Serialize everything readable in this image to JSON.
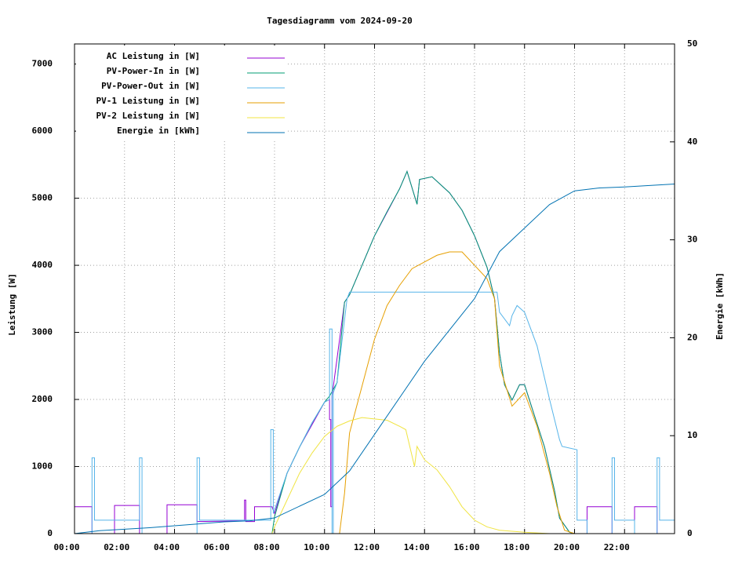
{
  "chart_data": {
    "type": "line",
    "title": "Tagesdiagramm vom 2024-09-20",
    "ylabel": "Leistung [W]",
    "y2label": "Energie [kWh]",
    "xlim": [
      0,
      24
    ],
    "xticks": [
      {
        "value": 0,
        "label": "00:00"
      },
      {
        "value": 2,
        "label": "02:00"
      },
      {
        "value": 4,
        "label": "04:00"
      },
      {
        "value": 6,
        "label": "06:00"
      },
      {
        "value": 8,
        "label": "08:00"
      },
      {
        "value": 10,
        "label": "10:00"
      },
      {
        "value": 12,
        "label": "12:00"
      },
      {
        "value": 14,
        "label": "14:00"
      },
      {
        "value": 16,
        "label": "16:00"
      },
      {
        "value": 18,
        "label": "18:00"
      },
      {
        "value": 20,
        "label": "20:00"
      },
      {
        "value": 22,
        "label": "22:00"
      }
    ],
    "ylim": [
      0,
      7300
    ],
    "yticks": [
      0,
      1000,
      2000,
      3000,
      4000,
      5000,
      6000,
      7000
    ],
    "y2lim": [
      0,
      50
    ],
    "y2ticks": [
      0,
      10,
      20,
      30,
      40,
      50
    ],
    "grid": true,
    "legend": "top-left",
    "series": [
      {
        "name": "AC Leistung in [W]",
        "color": "#9400d3",
        "x": [
          0,
          0.7,
          0.7,
          1.6,
          1.6,
          2.6,
          2.6,
          3.7,
          3.7,
          4.9,
          4.9,
          6.8,
          6.8,
          6.85,
          6.85,
          7.2,
          7.2,
          7.9,
          8,
          8.5,
          9,
          10,
          10.2,
          10.2,
          10.25,
          10.25,
          10.3,
          10.3,
          10.8,
          11,
          12,
          13,
          13.3,
          13.7,
          13.8,
          14.3,
          15,
          15.5,
          16,
          16.5,
          16.8,
          17,
          17.2,
          17.5,
          17.8,
          18,
          18.3,
          18.8,
          19.2,
          19.4,
          19.8,
          20,
          20.5,
          20.5,
          21.5,
          21.5,
          22.4,
          22.4,
          23.3,
          23.3,
          24
        ],
        "values": [
          400,
          400,
          0,
          0,
          420,
          420,
          0,
          0,
          430,
          430,
          180,
          190,
          500,
          500,
          180,
          180,
          400,
          400,
          300,
          900,
          1290,
          1960,
          2000,
          1700,
          1700,
          400,
          400,
          2050,
          3450,
          3560,
          4440,
          5140,
          5400,
          4910,
          5280,
          5320,
          5080,
          4820,
          4440,
          3970,
          3500,
          2690,
          2220,
          1990,
          2220,
          2220,
          1870,
          1290,
          640,
          230,
          20,
          0,
          0,
          400,
          400,
          0,
          0,
          400,
          400,
          0,
          0
        ]
      },
      {
        "name": "PV-Power-In in [W]",
        "color": "#009e73",
        "x": [
          0,
          7.9,
          8,
          8.5,
          9,
          9.5,
          10,
          10.2,
          10.5,
          10.8,
          11,
          11.5,
          12,
          12.5,
          13,
          13.3,
          13.7,
          13.8,
          14.3,
          15,
          15.5,
          16,
          16.5,
          16.8,
          17,
          17.2,
          17.5,
          17.8,
          18,
          18.3,
          18.8,
          19.2,
          19.4,
          19.8,
          20,
          24
        ],
        "values": [
          0,
          0,
          250,
          900,
          1290,
          1650,
          1960,
          2050,
          2250,
          3450,
          3560,
          4000,
          4440,
          4800,
          5140,
          5400,
          4910,
          5280,
          5320,
          5080,
          4820,
          4440,
          3970,
          3500,
          2690,
          2220,
          1990,
          2220,
          2220,
          1870,
          1290,
          640,
          230,
          20,
          0,
          0
        ]
      },
      {
        "name": "PV-Power-Out in [W]",
        "color": "#56b4e9",
        "x": [
          0,
          0.7,
          0.7,
          0.8,
          0.8,
          2.6,
          2.6,
          2.7,
          2.7,
          4.9,
          4.9,
          5,
          5,
          7.85,
          7.85,
          7.95,
          7.95,
          8.5,
          9,
          9.5,
          10,
          10.2,
          10.2,
          10.3,
          10.3,
          10.35,
          10.35,
          10.5,
          10.9,
          11,
          13,
          16.9,
          17,
          17.4,
          17.5,
          17.7,
          18,
          18.5,
          19,
          19.4,
          19.5,
          20.1,
          20.1,
          20.5,
          20.5,
          21.5,
          21.5,
          21.6,
          21.6,
          22.4,
          22.4,
          23.3,
          23.3,
          23.4,
          23.4,
          24
        ],
        "values": [
          0,
          0,
          1130,
          1130,
          200,
          200,
          1130,
          1130,
          0,
          0,
          1130,
          1130,
          200,
          200,
          1550,
          1550,
          300,
          900,
          1290,
          1650,
          1960,
          2000,
          3050,
          3050,
          0,
          0,
          2100,
          2250,
          3500,
          3600,
          3600,
          3600,
          3300,
          3100,
          3250,
          3400,
          3300,
          2800,
          2000,
          1400,
          1300,
          1250,
          200,
          200,
          0,
          0,
          1130,
          1130,
          200,
          200,
          0,
          0,
          1130,
          1130,
          200,
          200
        ]
      },
      {
        "name": "PV-1 Leistung in [W]",
        "color": "#e69f00",
        "x": [
          0,
          10.6,
          10.8,
          11,
          11.5,
          12,
          12.5,
          13,
          13.5,
          14,
          14.5,
          15,
          15.5,
          16,
          16.5,
          16.8,
          17,
          17.5,
          18,
          18.5,
          19,
          19.3,
          19.6,
          20,
          24
        ],
        "values": [
          0,
          0,
          600,
          1500,
          2200,
          2900,
          3400,
          3700,
          3950,
          4050,
          4150,
          4200,
          4200,
          4000,
          3800,
          3500,
          2500,
          1900,
          2100,
          1600,
          900,
          400,
          50,
          0,
          0
        ]
      },
      {
        "name": "PV-2 Leistung in [W]",
        "color": "#f0e442",
        "x": [
          0,
          7.9,
          8,
          8.5,
          9,
          9.5,
          10,
          10.5,
          11,
          11.5,
          12,
          12.5,
          13,
          13.25,
          13.6,
          13.7,
          14,
          14.5,
          15,
          15.5,
          16,
          16.5,
          17,
          18,
          19,
          24
        ],
        "values": [
          0,
          0,
          100,
          500,
          900,
          1200,
          1450,
          1600,
          1680,
          1730,
          1710,
          1690,
          1600,
          1550,
          1000,
          1300,
          1100,
          950,
          700,
          400,
          200,
          100,
          50,
          20,
          0,
          0
        ]
      },
      {
        "name": "Energie in [kWh]",
        "color": "#0072b2",
        "axis": "y2",
        "x": [
          0,
          1,
          3,
          4,
          6,
          7,
          8,
          10,
          11,
          14,
          16,
          17,
          18,
          19,
          20,
          21,
          22,
          24
        ],
        "values": [
          0,
          0.3,
          0.6,
          0.8,
          1.2,
          1.3,
          1.6,
          4.0,
          6.4,
          17.6,
          24,
          28.8,
          31.2,
          33.6,
          35.0,
          35.3,
          35.4,
          35.7
        ]
      }
    ]
  }
}
